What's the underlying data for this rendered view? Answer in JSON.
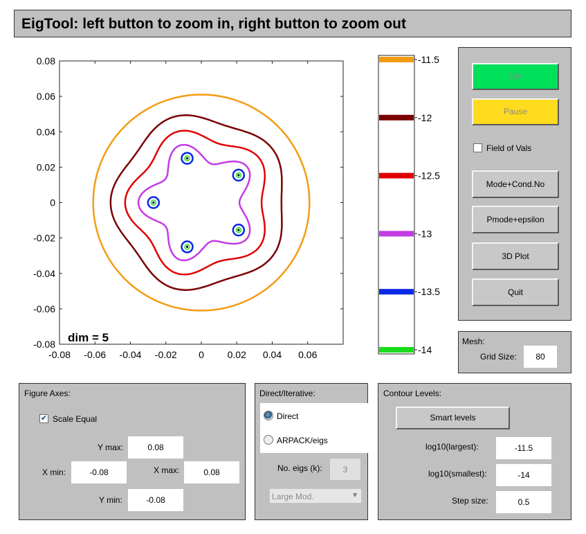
{
  "title": "EigTool: left button to zoom in, right button to zoom out",
  "plot": {
    "x_ticks": [
      "-0.08",
      "-0.06",
      "-0.04",
      "-0.02",
      "0",
      "0.02",
      "0.04",
      "0.06"
    ],
    "y_ticks": [
      "0.08",
      "0.06",
      "0.04",
      "0.02",
      "0",
      "-0.02",
      "-0.04",
      "-0.06",
      "-0.08"
    ],
    "dim_label": "dim = 5",
    "xlim": [
      -0.08,
      0.08
    ],
    "ylim": [
      -0.08,
      0.08
    ],
    "eigenvalues": [
      {
        "x": -0.008,
        "y": 0.025
      },
      {
        "x": 0.021,
        "y": 0.0155
      },
      {
        "x": -0.027,
        "y": 0.0
      },
      {
        "x": 0.021,
        "y": -0.0155
      },
      {
        "x": -0.008,
        "y": -0.025
      }
    ]
  },
  "colorbar": {
    "levels": [
      {
        "label": "-11.5",
        "color": "#f39c12"
      },
      {
        "label": "-12",
        "color": "#7a0000"
      },
      {
        "label": "-12.5",
        "color": "#e10000"
      },
      {
        "label": "-13",
        "color": "#c23be3"
      },
      {
        "label": "-13.5",
        "color": "#0a28e6"
      },
      {
        "label": "-14",
        "color": "#1ddc1d"
      }
    ]
  },
  "controls": {
    "go_label": "Go!",
    "pause_label": "Pause",
    "field_of_vals_label": "Field of Vals",
    "field_of_vals_checked": false,
    "mode_label": "Mode+Cond.No",
    "pmode_label": "Pmode+epsilon",
    "plot3d_label": "3D Plot",
    "quit_label": "Quit",
    "colors": {
      "go": "#00e05a",
      "pause": "#ffdb1e"
    }
  },
  "mesh": {
    "title": "Mesh:",
    "grid_label": "Grid Size:",
    "grid_value": "80"
  },
  "figure_axes": {
    "title": "Figure Axes:",
    "scale_equal_label": "Scale Equal",
    "scale_equal_checked": true,
    "ymax_label": "Y max:",
    "ymax_value": "0.08",
    "xmin_label": "X min:",
    "xmin_value": "-0.08",
    "xmax_label": "X max:",
    "xmax_value": "0.08",
    "ymin_label": "Y min:",
    "ymin_value": "-0.08"
  },
  "direct_iterative": {
    "title": "Direct/Iterative:",
    "direct_label": "Direct",
    "arpack_label": "ARPACK/eigs",
    "selected": "Direct",
    "neigs_label": "No. eigs (k):",
    "neigs_value": "3",
    "which_value": "Large Mod."
  },
  "contour_levels": {
    "title": "Contour Levels:",
    "smart_label": "Smart  levels",
    "largest_label": "log10(largest):",
    "largest_value": "-11.5",
    "smallest_label": "log10(smallest):",
    "smallest_value": "-14",
    "step_label": "Step size:",
    "step_value": "0.5"
  }
}
